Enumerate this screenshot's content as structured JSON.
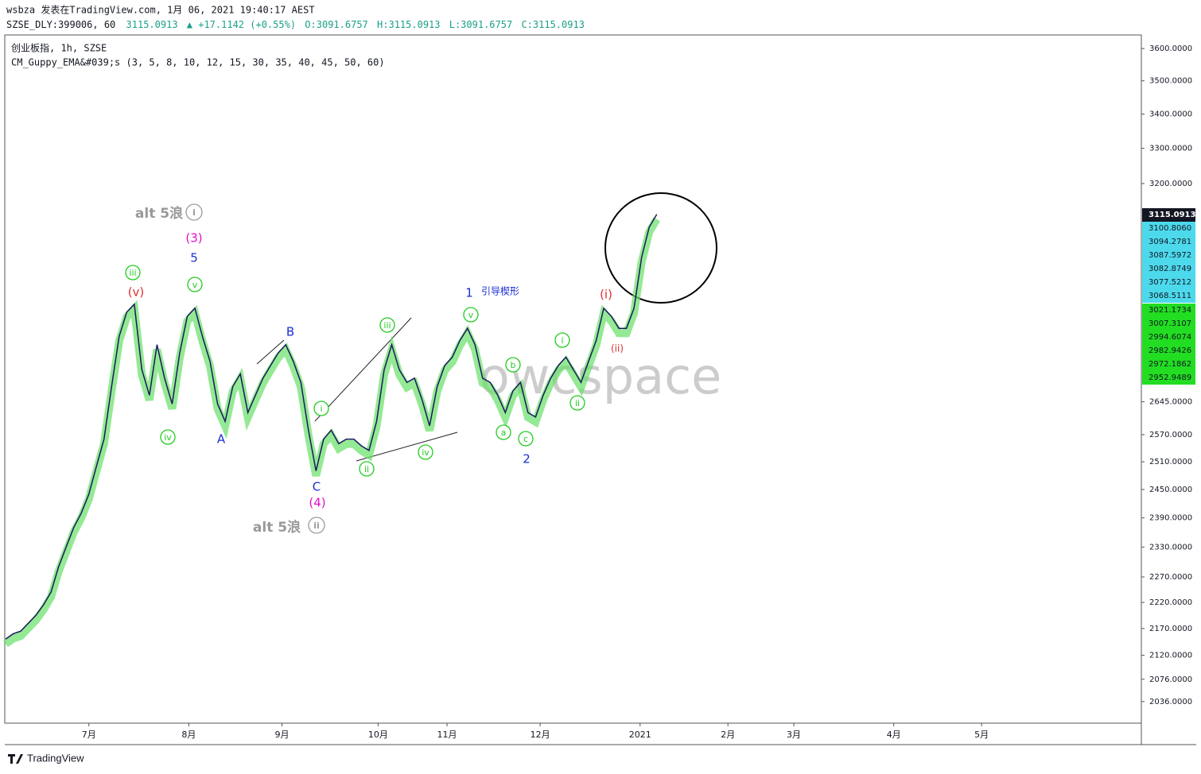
{
  "header": {
    "author_line": "wsbza 发表在TradingView.com, 1月 06, 2021 19:40:17 AEST",
    "symbol": "SZSE_DLY:399006, 60",
    "last": "3115.0913",
    "change": "▲ +17.1142 (+0.55%)",
    "ohlc": [
      "O:3091.6757",
      "H:3115.0913",
      "L:3091.6757",
      "C:3115.0913"
    ],
    "instrument": "创业板指, 1h, SZSE",
    "indicator": "CM_Guppy_EMA&#039;s (3, 5, 8, 10, 12, 15, 30, 35, 40, 45, 50, 60)"
  },
  "chart_data": {
    "type": "line",
    "log": true,
    "color": "#1a1a5e",
    "values": [
      2150,
      2160,
      2165,
      2180,
      2195,
      2215,
      2240,
      2290,
      2330,
      2370,
      2400,
      2440,
      2500,
      2560,
      2680,
      2800,
      2860,
      2880,
      2720,
      2660,
      2780,
      2700,
      2640,
      2760,
      2850,
      2870,
      2800,
      2740,
      2640,
      2600,
      2680,
      2710,
      2620,
      2660,
      2700,
      2730,
      2760,
      2780,
      2740,
      2690,
      2580,
      2490,
      2560,
      2580,
      2550,
      2560,
      2560,
      2545,
      2535,
      2600,
      2720,
      2780,
      2720,
      2690,
      2700,
      2650,
      2590,
      2680,
      2730,
      2750,
      2790,
      2820,
      2780,
      2700,
      2690,
      2660,
      2620,
      2670,
      2690,
      2620,
      2610,
      2660,
      2700,
      2730,
      2750,
      2720,
      2690,
      2740,
      2790,
      2870,
      2850,
      2820,
      2820,
      2870,
      3000,
      3080,
      3115.0913
    ],
    "xlim": [
      0,
      150
    ],
    "ylim": [
      1998,
      3643
    ],
    "xticks": [
      {
        "value": 11,
        "label": "7月"
      },
      {
        "value": 24.2,
        "label": "8月"
      },
      {
        "value": 36.5,
        "label": "9月"
      },
      {
        "value": 49.2,
        "label": "10月"
      },
      {
        "value": 58.3,
        "label": "11月"
      },
      {
        "value": 70.6,
        "label": "12月"
      },
      {
        "value": 83.8,
        "label": "2021"
      },
      {
        "value": 95.4,
        "label": "2月"
      },
      {
        "value": 104.1,
        "label": "3月"
      },
      {
        "value": 117.3,
        "label": "4月"
      },
      {
        "value": 128.9,
        "label": "5月"
      }
    ],
    "yticks": [
      {
        "value": 3600,
        "label": "3600.0000"
      },
      {
        "value": 3500,
        "label": "3500.0000"
      },
      {
        "value": 3400,
        "label": "3400.0000"
      },
      {
        "value": 3300,
        "label": "3300.0000"
      },
      {
        "value": 3200,
        "label": "3200.0000"
      },
      {
        "value": 2645,
        "label": "2645.0000"
      },
      {
        "value": 2570,
        "label": "2570.0000"
      },
      {
        "value": 2510,
        "label": "2510.0000"
      },
      {
        "value": 2450,
        "label": "2450.0000"
      },
      {
        "value": 2390,
        "label": "2390.0000"
      },
      {
        "value": 2330,
        "label": "2330.0000"
      },
      {
        "value": 2270,
        "label": "2270.0000"
      },
      {
        "value": 2220,
        "label": "2220.0000"
      },
      {
        "value": 2170,
        "label": "2170.0000"
      },
      {
        "value": 2120,
        "label": "2120.0000"
      },
      {
        "value": 2076,
        "label": "2076.0000"
      },
      {
        "value": 2036,
        "label": "2036.0000"
      }
    ],
    "price_tags": [
      {
        "label": "3115.0913",
        "color": "#131722"
      },
      {
        "label": "3100.8060",
        "color": "#4dd9ec"
      },
      {
        "label": "3094.2781",
        "color": "#4dd9ec"
      },
      {
        "label": "3087.5972",
        "color": "#4dd9ec"
      },
      {
        "label": "3082.8749",
        "color": "#4dd9ec"
      },
      {
        "label": "3077.5212",
        "color": "#4dd9ec"
      },
      {
        "label": "3068.5111",
        "color": "#4dd9ec"
      },
      {
        "label": "3021.1734",
        "color": "#22dd22"
      },
      {
        "label": "3007.3107",
        "color": "#22dd22"
      },
      {
        "label": "2994.6074",
        "color": "#22dd22"
      },
      {
        "label": "2982.9426",
        "color": "#22dd22"
      },
      {
        "label": "2972.1862",
        "color": "#22dd22"
      },
      {
        "label": "2952.9489",
        "color": "#22dd22"
      }
    ],
    "annotations": [
      {
        "text": "alt 5浪",
        "color": "#999999"
      },
      {
        "text": "i",
        "color": "#999999",
        "circle": true
      },
      {
        "text": "(3)",
        "color": "#e010c8"
      },
      {
        "text": "5",
        "color": "#1a2fd0"
      },
      {
        "text": "iii",
        "color": "#22cc22",
        "circle": true
      },
      {
        "text": "(v)",
        "color": "#e03030"
      },
      {
        "text": "v",
        "color": "#22cc22",
        "circle": true
      },
      {
        "text": "iv",
        "color": "#22cc22",
        "circle": true
      },
      {
        "text": "A",
        "color": "#1a2fd0"
      },
      {
        "text": "B",
        "color": "#1a2fd0"
      },
      {
        "text": "C",
        "color": "#1a2fd0"
      },
      {
        "text": "(4)",
        "color": "#e010c8"
      },
      {
        "text": "alt 5浪",
        "color": "#999999"
      },
      {
        "text": "ii",
        "color": "#999999",
        "circle": true
      },
      {
        "text": "i",
        "color": "#22cc22",
        "circle": true
      },
      {
        "text": "ii",
        "color": "#22cc22",
        "circle": true
      },
      {
        "text": "iii",
        "color": "#22cc22",
        "circle": true
      },
      {
        "text": "iv",
        "color": "#22cc22",
        "circle": true
      },
      {
        "text": "v",
        "color": "#22cc22",
        "circle": true
      },
      {
        "text": "1",
        "color": "#1a2fd0"
      },
      {
        "text": "引导楔形",
        "color": "#1a2fd0"
      },
      {
        "text": "b",
        "color": "#22cc22",
        "circle": true
      },
      {
        "text": "a",
        "color": "#22cc22",
        "circle": true
      },
      {
        "text": "c",
        "color": "#22cc22",
        "circle": true
      },
      {
        "text": "2",
        "color": "#1a2fd0"
      },
      {
        "text": "i",
        "color": "#22cc22",
        "circle": true
      },
      {
        "text": "ii",
        "color": "#22cc22",
        "circle": true
      },
      {
        "text": "(i)",
        "color": "#e03030"
      },
      {
        "text": "(ii)",
        "color": "#e03030"
      }
    ],
    "watermark": "owcspace"
  },
  "footer": {
    "brand": "TradingView"
  }
}
